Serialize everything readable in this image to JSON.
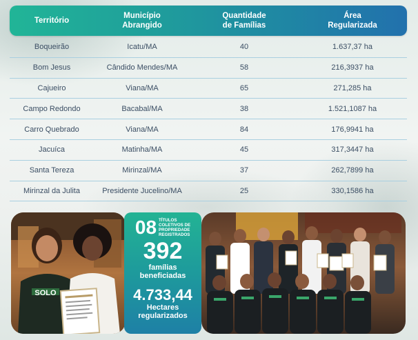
{
  "table": {
    "headers": {
      "territorio": "Território",
      "municipio": "Município\nAbrangido",
      "quantidade": "Quantidade\nde Famílias",
      "area": "Área\nRegularizada"
    },
    "rows": [
      {
        "territorio": "Boqueirão",
        "municipio": "Icatu/MA",
        "familias": "40",
        "area": "1.637,37 ha"
      },
      {
        "territorio": "Bom Jesus",
        "municipio": "Cândido Mendes/MA",
        "familias": "58",
        "area": "216,3937 ha"
      },
      {
        "territorio": "Cajueiro",
        "municipio": "Viana/MA",
        "familias": "65",
        "area": "271,285 ha"
      },
      {
        "territorio": "Campo Redondo",
        "municipio": "Bacabal/MA",
        "familias": "38",
        "area": "1.521,1087 ha"
      },
      {
        "territorio": "Carro Quebrado",
        "municipio": "Viana/MA",
        "familias": "84",
        "area": "176,9941 ha"
      },
      {
        "territorio": "Jacuíca",
        "municipio": "Matinha/MA",
        "familias": "45",
        "area": "317,3447 ha"
      },
      {
        "territorio": "Santa Tereza",
        "municipio": "Mirinzal/MA",
        "familias": "37",
        "area": "262,7899 ha"
      },
      {
        "territorio": "Mirinzal da Julita",
        "municipio": "Presidente Jucelino/MA",
        "familias": "25",
        "area": "330,1586 ha"
      }
    ]
  },
  "stats": {
    "titulos_number": "08",
    "titulos_line1": "TÍTULOS",
    "titulos_line2": "COLETIVOS DE",
    "titulos_line3": "PROPRIEDADE",
    "titulos_line4": "REGISTRADOS",
    "familias_number": "392",
    "familias_line1": "famílias",
    "familias_line2": "beneficiadas",
    "hectares_number": "4.733,44",
    "hectares_line1": "Hectares",
    "hectares_line2": "regularizados"
  },
  "photo_left": {
    "shirt_text": "SOLO"
  }
}
